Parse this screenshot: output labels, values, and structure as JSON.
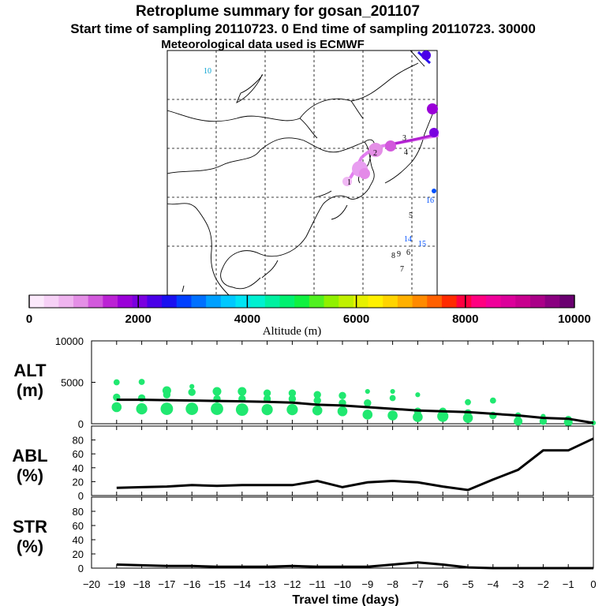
{
  "header": {
    "title": "Retroplume summary for gosan_201107",
    "sampling_line": "Start time of sampling 20110723.    0     End time of sampling 20110723. 30000",
    "met_line": "Meteorological data used is ECMWF"
  },
  "colorbar": {
    "label": "Altitude (m)",
    "ticks": [
      0,
      2000,
      4000,
      6000,
      8000,
      10000
    ],
    "tick_labels": [
      "0",
      "2000",
      "4000",
      "6000",
      "8000",
      "10000"
    ],
    "colors": [
      "#fbe9fb",
      "#f6d1f6",
      "#efb4ef",
      "#e48fe6",
      "#d259dc",
      "#bb22d4",
      "#9a00d8",
      "#7a00e0",
      "#4a00e8",
      "#1a10f0",
      "#0040ff",
      "#0070ff",
      "#00a0ff",
      "#00c8ff",
      "#00e4f4",
      "#00f0d0",
      "#00f0a0",
      "#00f070",
      "#10f040",
      "#50f020",
      "#90f000",
      "#c0f000",
      "#e6f000",
      "#fff000",
      "#ffd400",
      "#ffb000",
      "#ff8a00",
      "#ff6000",
      "#ff2a00",
      "#ff0040",
      "#ff0080",
      "#f0009a",
      "#dc009a",
      "#c8008e",
      "#aa0088",
      "#8a0080",
      "#6a0070"
    ]
  },
  "map": {
    "number_labels": [
      {
        "t": "10",
        "color": "#00a0d0"
      },
      {
        "t": "1",
        "color": "#000000"
      },
      {
        "t": "2",
        "color": "#000000"
      },
      {
        "t": "3",
        "color": "#000000"
      },
      {
        "t": "4",
        "color": "#000000"
      },
      {
        "t": "5",
        "color": "#000000"
      },
      {
        "t": "6",
        "color": "#000000"
      },
      {
        "t": "7",
        "color": "#000000"
      },
      {
        "t": "8",
        "color": "#000000"
      },
      {
        "t": "9",
        "color": "#000000"
      },
      {
        "t": "14",
        "color": "#0050ff"
      },
      {
        "t": "15",
        "color": "#0050ff"
      },
      {
        "t": "16",
        "color": "#0050ff"
      }
    ]
  },
  "chart_data": [
    {
      "type": "scatter",
      "panel": "ALT",
      "ylabel": "ALT\n(m)",
      "ylabel_line1": "ALT",
      "ylabel_line2": "(m)",
      "ylim": [
        0,
        10000
      ],
      "yticks": [
        0,
        5000,
        10000
      ],
      "ytick_labels": [
        "0",
        "5000",
        "10000"
      ],
      "xlim": [
        -20,
        0
      ],
      "median_line": {
        "x": [
          -19,
          -18,
          -17,
          -16,
          -15,
          -14,
          -13,
          -12,
          -11,
          -10,
          -9,
          -8,
          -7,
          -6,
          -5,
          -4,
          -3,
          -2,
          -1,
          0
        ],
        "y": [
          2900,
          2900,
          2850,
          2800,
          2750,
          2700,
          2650,
          2550,
          2300,
          2200,
          2000,
          1800,
          1600,
          1500,
          1400,
          1200,
          1000,
          700,
          600,
          100
        ]
      },
      "points": [
        {
          "x": -19,
          "y": 5000,
          "s": 1.5
        },
        {
          "x": -19,
          "y": 3200,
          "s": 2
        },
        {
          "x": -19,
          "y": 2000,
          "s": 3
        },
        {
          "x": -18,
          "y": 5050,
          "s": 1.5
        },
        {
          "x": -18,
          "y": 3100,
          "s": 2
        },
        {
          "x": -18,
          "y": 1800,
          "s": 3.5
        },
        {
          "x": -17,
          "y": 4000,
          "s": 2.5
        },
        {
          "x": -17,
          "y": 3500,
          "s": 2
        },
        {
          "x": -17,
          "y": 1800,
          "s": 4
        },
        {
          "x": -16,
          "y": 4500,
          "s": 1
        },
        {
          "x": -16,
          "y": 3800,
          "s": 2
        },
        {
          "x": -16,
          "y": 1800,
          "s": 4
        },
        {
          "x": -15,
          "y": 3900,
          "s": 2.5
        },
        {
          "x": -15,
          "y": 3000,
          "s": 2
        },
        {
          "x": -15,
          "y": 1800,
          "s": 4
        },
        {
          "x": -14,
          "y": 3900,
          "s": 2.5
        },
        {
          "x": -14,
          "y": 3000,
          "s": 2
        },
        {
          "x": -14,
          "y": 1700,
          "s": 4
        },
        {
          "x": -13,
          "y": 3700,
          "s": 2
        },
        {
          "x": -13,
          "y": 3000,
          "s": 2
        },
        {
          "x": -13,
          "y": 1700,
          "s": 3.5
        },
        {
          "x": -12,
          "y": 3700,
          "s": 2
        },
        {
          "x": -12,
          "y": 3000,
          "s": 2
        },
        {
          "x": -12,
          "y": 1700,
          "s": 3.5
        },
        {
          "x": -11,
          "y": 3500,
          "s": 2
        },
        {
          "x": -11,
          "y": 2800,
          "s": 2
        },
        {
          "x": -11,
          "y": 1600,
          "s": 3
        },
        {
          "x": -10,
          "y": 3400,
          "s": 2
        },
        {
          "x": -10,
          "y": 2500,
          "s": 2
        },
        {
          "x": -10,
          "y": 1500,
          "s": 3
        },
        {
          "x": -9,
          "y": 3900,
          "s": 1
        },
        {
          "x": -9,
          "y": 2500,
          "s": 2
        },
        {
          "x": -9,
          "y": 1100,
          "s": 3
        },
        {
          "x": -8,
          "y": 3900,
          "s": 1
        },
        {
          "x": -8,
          "y": 3100,
          "s": 1.5
        },
        {
          "x": -8,
          "y": 1000,
          "s": 3
        },
        {
          "x": -7,
          "y": 3500,
          "s": 1
        },
        {
          "x": -7,
          "y": 1500,
          "s": 2
        },
        {
          "x": -7,
          "y": 800,
          "s": 3
        },
        {
          "x": -6,
          "y": 1500,
          "s": 2
        },
        {
          "x": -6,
          "y": 900,
          "s": 3.5
        },
        {
          "x": -5,
          "y": 2600,
          "s": 1.5
        },
        {
          "x": -5,
          "y": 1300,
          "s": 2
        },
        {
          "x": -5,
          "y": 700,
          "s": 3
        },
        {
          "x": -4,
          "y": 2800,
          "s": 1.5
        },
        {
          "x": -4,
          "y": 1000,
          "s": 2
        },
        {
          "x": -3,
          "y": 1000,
          "s": 1.5
        },
        {
          "x": -3,
          "y": 300,
          "s": 2.5
        },
        {
          "x": -2,
          "y": 900,
          "s": 1
        },
        {
          "x": -2,
          "y": 300,
          "s": 2
        },
        {
          "x": -1,
          "y": 500,
          "s": 2
        },
        {
          "x": -1,
          "y": 200,
          "s": 2.5
        },
        {
          "x": 0,
          "y": 100,
          "s": 1
        }
      ]
    },
    {
      "type": "line",
      "panel": "ABL",
      "ylabel": "ABL\n(%)",
      "ylabel_line1": "ABL",
      "ylabel_line2": "(%)",
      "ylim": [
        0,
        100
      ],
      "yticks": [
        0,
        20,
        40,
        60,
        80
      ],
      "ytick_labels": [
        "0",
        "20",
        "40",
        "60",
        "80"
      ],
      "x": [
        -19,
        -18,
        -17,
        -16,
        -15,
        -14,
        -13,
        -12,
        -11,
        -10,
        -9,
        -8,
        -7,
        -6,
        -5,
        -4,
        -3,
        -2,
        -1,
        0
      ],
      "y": [
        11,
        12,
        13,
        15,
        14,
        15,
        15,
        15,
        21,
        12,
        19,
        21,
        19,
        13,
        8,
        23,
        37,
        65,
        65,
        82
      ]
    },
    {
      "type": "line",
      "panel": "STR",
      "ylabel": "STR\n(%)",
      "ylabel_line1": "STR",
      "ylabel_line2": "(%)",
      "ylim": [
        0,
        100
      ],
      "yticks": [
        0,
        20,
        40,
        60,
        80
      ],
      "ytick_labels": [
        "0",
        "20",
        "40",
        "60",
        "80"
      ],
      "x": [
        -19,
        -18,
        -17,
        -16,
        -15,
        -14,
        -13,
        -12,
        -11,
        -10,
        -9,
        -8,
        -7,
        -6,
        -5,
        -4,
        -3,
        -2,
        -1,
        0
      ],
      "y": [
        5,
        4,
        3,
        3,
        2,
        2,
        2,
        3,
        2,
        2,
        2,
        5,
        8,
        5,
        1,
        0,
        0,
        0,
        0,
        0
      ]
    }
  ],
  "xaxis": {
    "xlabel": "Travel time (days)",
    "ticks": [
      -20,
      -19,
      -18,
      -17,
      -16,
      -15,
      -14,
      -13,
      -12,
      -11,
      -10,
      -9,
      -8,
      -7,
      -6,
      -5,
      -4,
      -3,
      -2,
      -1,
      0
    ],
    "tick_labels": [
      "−20",
      "−19",
      "−18",
      "−17",
      "−16",
      "−15",
      "−14",
      "−13",
      "−12",
      "−11",
      "−10",
      "−9",
      "−8",
      "−7",
      "−6",
      "−5",
      "−4",
      "−3",
      "−2",
      "−1",
      "0"
    ]
  },
  "colors": {
    "point": "#20e870",
    "line": "#000000"
  }
}
